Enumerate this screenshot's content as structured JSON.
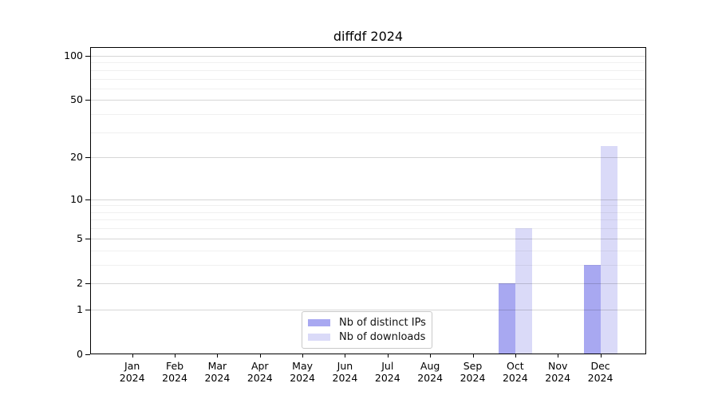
{
  "chart_data": {
    "type": "bar",
    "title": "diffdf 2024",
    "categories": [
      "Jan",
      "Feb",
      "Mar",
      "Apr",
      "May",
      "Jun",
      "Jul",
      "Aug",
      "Sep",
      "Oct",
      "Nov",
      "Dec"
    ],
    "year_label": "2024",
    "series": [
      {
        "name": "Nb of distinct IPs",
        "color": "#a8a8f1",
        "values": [
          0,
          0,
          0,
          0,
          0,
          0,
          0,
          0,
          0,
          2,
          0,
          3
        ]
      },
      {
        "name": "Nb of downloads",
        "color": "#dadaf8",
        "values": [
          0,
          0,
          0,
          0,
          0,
          0,
          0,
          0,
          0,
          6,
          0,
          24
        ]
      }
    ],
    "xlabel": "",
    "ylabel": "",
    "y_scale": "log1p",
    "y_ticks": [
      0,
      1,
      2,
      5,
      10,
      20,
      50,
      100
    ],
    "y_minor_gridlines": [
      3,
      4,
      6,
      7,
      8,
      9,
      30,
      40,
      60,
      70,
      80,
      90
    ],
    "ylim": [
      0,
      115
    ],
    "grid": true,
    "legend_position": "lower center",
    "background_color": "#ffffff",
    "axis_color": "#000000"
  }
}
